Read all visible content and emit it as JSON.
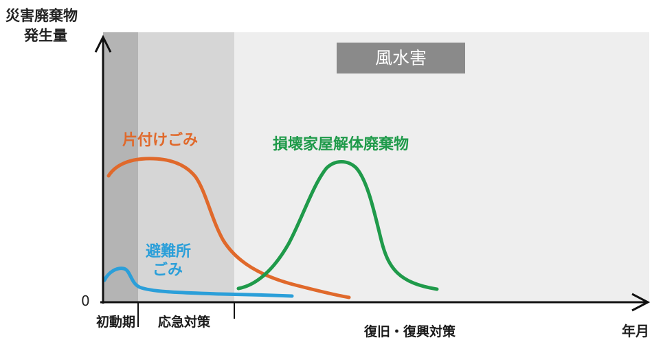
{
  "title": "風水害",
  "y_axis": {
    "label_lines": [
      "災害廃棄物",
      "発生量"
    ],
    "zero_label": "0"
  },
  "x_axis": {
    "label": "年月"
  },
  "phases": [
    {
      "label": "初動期"
    },
    {
      "label": "応急対策"
    },
    {
      "label": "復旧・復興対策"
    }
  ],
  "series": [
    {
      "label_lines": [
        "片付けごみ"
      ],
      "color": "#e0692b"
    },
    {
      "label_lines": [
        "避難所",
        "ごみ"
      ],
      "color": "#2b9fd9"
    },
    {
      "label_lines": [
        "損壊家屋解体廃棄物"
      ],
      "color": "#1f9a4a"
    }
  ],
  "colors": {
    "background": "#eeeeee",
    "phase_initial": "#b4b4b4",
    "phase_emergency": "#d6d6d6",
    "title_box": "#8a8a8a",
    "axis": "#111111"
  }
}
